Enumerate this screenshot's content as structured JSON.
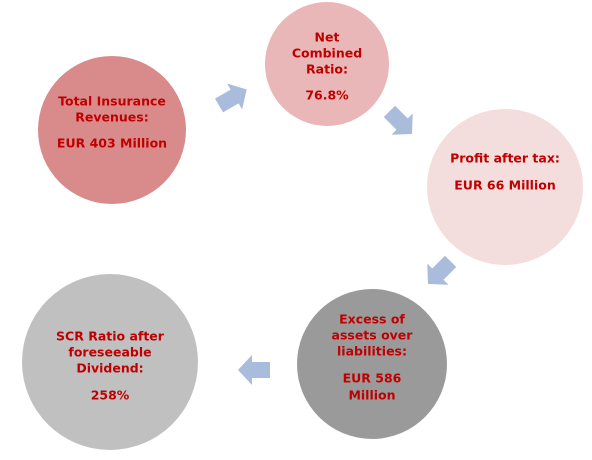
{
  "nodes": [
    {
      "lines": [
        "Total Insurance",
        "Revenues:",
        "EUR 403 Million"
      ]
    },
    {
      "lines": [
        "Net",
        "Combined",
        "Ratio:",
        "76.8%"
      ]
    },
    {
      "lines": [
        "Profit after tax:",
        "EUR 66 Million"
      ]
    },
    {
      "lines": [
        "Excess of",
        "assets over",
        "liabilities:",
        "EUR 586",
        "Million"
      ]
    },
    {
      "lines": [
        "SCR Ratio after",
        "foreseeable",
        "Dividend:",
        "258%"
      ]
    }
  ]
}
